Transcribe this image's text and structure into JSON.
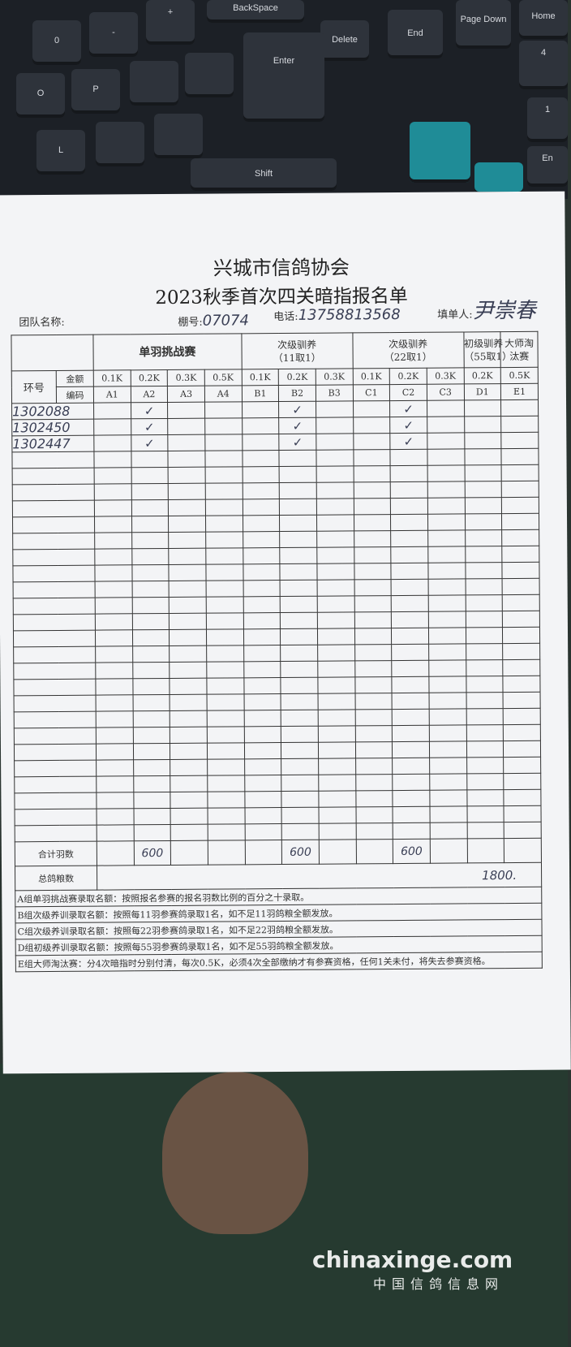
{
  "keyboard": {
    "keys": [
      "BackSpace",
      "Delete",
      "End",
      "Page Down",
      "Home",
      "Enter",
      "Shift",
      "O",
      "P",
      "L",
      "0",
      "+",
      "-",
      "4",
      "1",
      "En"
    ]
  },
  "header": {
    "org": "兴城市信鸽协会",
    "title": "2023秋季首次四关暗指报名单",
    "team_label": "团队名称:",
    "loft_label": "棚号:",
    "loft_value": "07074",
    "phone_label": "电话:",
    "phone_value": "13758813568",
    "filler_label": "填单人:",
    "filler_value": "尹崇春"
  },
  "table": {
    "ring_label": "环号",
    "amount_label": "金额",
    "code_label": "编码",
    "groups": [
      {
        "name": "单羽挑战赛",
        "sub": ""
      },
      {
        "name": "次级驯养",
        "sub": "（11取1）"
      },
      {
        "name": "次级驯养",
        "sub": "（22取1）"
      },
      {
        "name": "初级驯养",
        "sub": "（55取1）"
      },
      {
        "name": "大师淘",
        "sub": "汰赛"
      }
    ],
    "amounts": [
      "0.1K",
      "0.2K",
      "0.3K",
      "0.5K",
      "0.1K",
      "0.2K",
      "0.3K",
      "0.1K",
      "0.2K",
      "0.3K",
      "0.2K",
      "0.5K"
    ],
    "codes": [
      "A1",
      "A2",
      "A3",
      "A4",
      "B1",
      "B2",
      "B3",
      "C1",
      "C2",
      "C3",
      "D1",
      "E1"
    ],
    "check_mark": "✓",
    "rows": [
      {
        "ring": "1302088",
        "checks": [
          "A2",
          "B2",
          "C2"
        ]
      },
      {
        "ring": "1302450",
        "checks": [
          "A2",
          "B2",
          "C2"
        ]
      },
      {
        "ring": "1302447",
        "checks": [
          "A2",
          "B2",
          "C2"
        ]
      }
    ],
    "total_label": "合计羽数",
    "totals": {
      "A2": "600",
      "B2": "600",
      "C2": "600"
    },
    "grain_label": "总鸽粮数",
    "grain_value": "1800."
  },
  "notes": [
    "A组单羽挑战赛录取名额：按照报名参赛的报名羽数比例的百分之十录取。",
    "B组次级养训录取名额：按照每11羽参赛鸽录取1名，如不足11羽鸽粮全额发放。",
    "C组次级养训录取名额：按照每22羽参赛鸽录取1名，如不足22羽鸽粮全额发放。",
    "D组初级养训录取名额：按照每55羽参赛鸽录取1名，如不足55羽鸽粮全额发放。",
    "E组大师淘汰赛：分4次暗指时分别付清，每次0.5K，必须4次全部缴纳才有参赛资格，任何1关未付，将失去参赛资格。"
  ],
  "watermark": {
    "site": "chinaxinge.com",
    "name": "中国信鸽信息网"
  }
}
